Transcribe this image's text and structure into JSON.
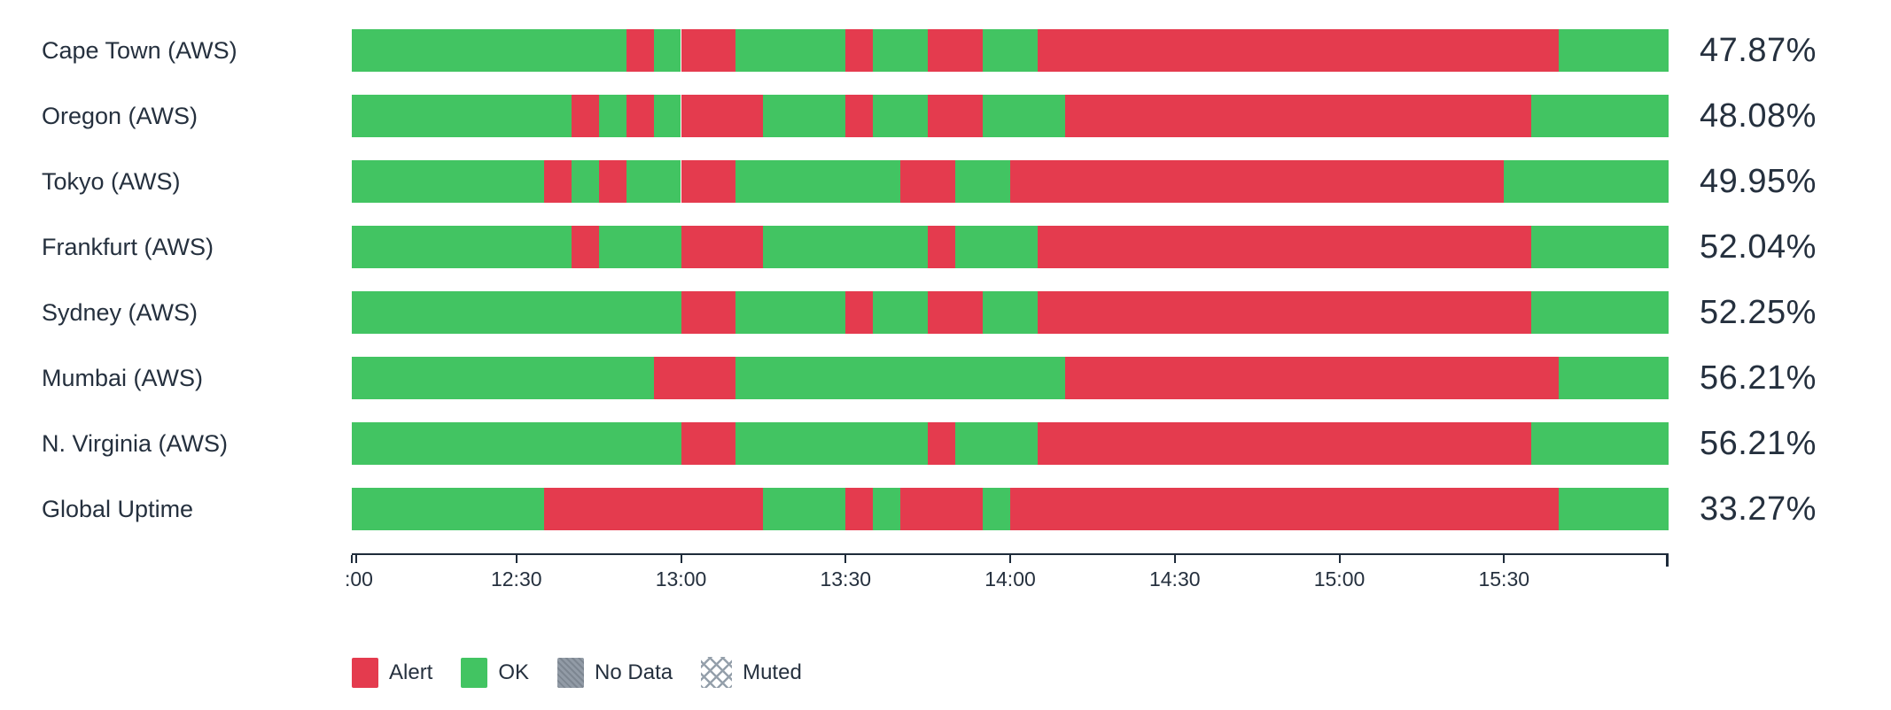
{
  "page": {
    "background": "#ffffff"
  },
  "colors": {
    "alert": "#e43b4e",
    "ok": "#42c462",
    "no_data": "#8b95a1",
    "muted_hatch": "#95a0ab",
    "text": "#25303e",
    "axis": "#1e2b3a"
  },
  "legend": {
    "items": [
      {
        "id": "alert",
        "label": "Alert"
      },
      {
        "id": "ok",
        "label": "OK"
      },
      {
        "id": "no_data",
        "label": "No Data"
      },
      {
        "id": "muted",
        "label": "Muted"
      }
    ]
  },
  "chart_data": {
    "type": "bar",
    "subtype": "horizontal-status-timeline",
    "title": "",
    "legend_position": "bottom-left",
    "x_axis": {
      "start": "12:00",
      "end": "16:00",
      "total_minutes": 240,
      "ticks": [
        {
          "minute": 0,
          "label": ":00"
        },
        {
          "minute": 30,
          "label": "12:30"
        },
        {
          "minute": 60,
          "label": "13:00"
        },
        {
          "minute": 90,
          "label": "13:30"
        },
        {
          "minute": 120,
          "label": "14:00"
        },
        {
          "minute": 150,
          "label": "14:30"
        },
        {
          "minute": 180,
          "label": "15:00"
        },
        {
          "minute": 210,
          "label": "15:30"
        }
      ],
      "edge_ticks_pct": [
        0,
        0.35
      ]
    },
    "categories": [
      "Cape Town (AWS)",
      "Oregon (AWS)",
      "Tokyo (AWS)",
      "Frankfurt (AWS)",
      "Sydney (AWS)",
      "Mumbai (AWS)",
      "N. Virginia (AWS)",
      "Global Uptime"
    ],
    "values": [
      47.87,
      48.08,
      49.95,
      52.04,
      52.25,
      56.21,
      56.21,
      33.27
    ],
    "rows": [
      {
        "label": "Cape Town (AWS)",
        "value_label": "47.87%",
        "uptime_pct": 47.87,
        "segments": [
          [
            "ok",
            0,
            50
          ],
          [
            "alert",
            50,
            55
          ],
          [
            "ok",
            55,
            60
          ],
          [
            "alert",
            60,
            70
          ],
          [
            "ok",
            70,
            90
          ],
          [
            "alert",
            90,
            95
          ],
          [
            "ok",
            95,
            105
          ],
          [
            "alert",
            105,
            115
          ],
          [
            "ok",
            115,
            125
          ],
          [
            "alert",
            125,
            220
          ],
          [
            "ok",
            220,
            240
          ]
        ]
      },
      {
        "label": "Oregon (AWS)",
        "value_label": "48.08%",
        "uptime_pct": 48.08,
        "segments": [
          [
            "ok",
            0,
            40
          ],
          [
            "alert",
            40,
            45
          ],
          [
            "ok",
            45,
            50
          ],
          [
            "alert",
            50,
            55
          ],
          [
            "ok",
            55,
            60
          ],
          [
            "alert",
            60,
            75
          ],
          [
            "ok",
            75,
            90
          ],
          [
            "alert",
            90,
            95
          ],
          [
            "ok",
            95,
            105
          ],
          [
            "alert",
            105,
            115
          ],
          [
            "ok",
            115,
            130
          ],
          [
            "alert",
            130,
            215
          ],
          [
            "ok",
            215,
            240
          ]
        ]
      },
      {
        "label": "Tokyo (AWS)",
        "value_label": "49.95%",
        "uptime_pct": 49.95,
        "segments": [
          [
            "ok",
            0,
            35
          ],
          [
            "alert",
            35,
            40
          ],
          [
            "ok",
            40,
            45
          ],
          [
            "alert",
            45,
            50
          ],
          [
            "ok",
            50,
            60
          ],
          [
            "alert",
            60,
            70
          ],
          [
            "ok",
            70,
            100
          ],
          [
            "alert",
            100,
            110
          ],
          [
            "ok",
            110,
            120
          ],
          [
            "alert",
            120,
            210
          ],
          [
            "ok",
            210,
            240
          ]
        ]
      },
      {
        "label": "Frankfurt (AWS)",
        "value_label": "52.04%",
        "uptime_pct": 52.04,
        "segments": [
          [
            "ok",
            0,
            40
          ],
          [
            "alert",
            40,
            45
          ],
          [
            "ok",
            45,
            60
          ],
          [
            "alert",
            60,
            75
          ],
          [
            "ok",
            75,
            105
          ],
          [
            "alert",
            105,
            110
          ],
          [
            "ok",
            110,
            125
          ],
          [
            "alert",
            125,
            215
          ],
          [
            "ok",
            215,
            240
          ]
        ]
      },
      {
        "label": "Sydney (AWS)",
        "value_label": "52.25%",
        "uptime_pct": 52.25,
        "segments": [
          [
            "ok",
            0,
            60
          ],
          [
            "alert",
            60,
            70
          ],
          [
            "ok",
            70,
            90
          ],
          [
            "alert",
            90,
            95
          ],
          [
            "ok",
            95,
            105
          ],
          [
            "alert",
            105,
            115
          ],
          [
            "ok",
            115,
            125
          ],
          [
            "alert",
            125,
            215
          ],
          [
            "ok",
            215,
            240
          ]
        ]
      },
      {
        "label": "Mumbai (AWS)",
        "value_label": "56.21%",
        "uptime_pct": 56.21,
        "segments": [
          [
            "ok",
            0,
            55
          ],
          [
            "alert",
            55,
            70
          ],
          [
            "ok",
            70,
            130
          ],
          [
            "alert",
            130,
            220
          ],
          [
            "ok",
            220,
            240
          ]
        ]
      },
      {
        "label": "N. Virginia (AWS)",
        "value_label": "56.21%",
        "uptime_pct": 56.21,
        "segments": [
          [
            "ok",
            0,
            60
          ],
          [
            "alert",
            60,
            70
          ],
          [
            "ok",
            70,
            105
          ],
          [
            "alert",
            105,
            110
          ],
          [
            "ok",
            110,
            125
          ],
          [
            "alert",
            125,
            215
          ],
          [
            "ok",
            215,
            240
          ]
        ]
      },
      {
        "label": "Global Uptime",
        "value_label": "33.27%",
        "uptime_pct": 33.27,
        "segments": [
          [
            "ok",
            0,
            35
          ],
          [
            "alert",
            35,
            75
          ],
          [
            "ok",
            75,
            90
          ],
          [
            "alert",
            90,
            95
          ],
          [
            "ok",
            95,
            100
          ],
          [
            "alert",
            100,
            115
          ],
          [
            "ok",
            115,
            120
          ],
          [
            "alert",
            120,
            220
          ],
          [
            "ok",
            220,
            240
          ]
        ]
      }
    ]
  }
}
